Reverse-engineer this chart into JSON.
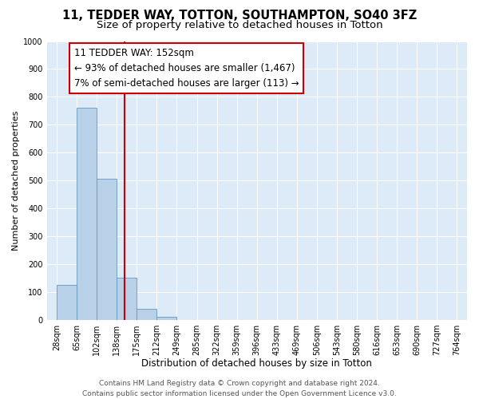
{
  "title": "11, TEDDER WAY, TOTTON, SOUTHAMPTON, SO40 3FZ",
  "subtitle": "Size of property relative to detached houses in Totton",
  "xlabel": "Distribution of detached houses by size in Totton",
  "ylabel": "Number of detached properties",
  "bin_labels": [
    "28sqm",
    "65sqm",
    "102sqm",
    "138sqm",
    "175sqm",
    "212sqm",
    "249sqm",
    "285sqm",
    "322sqm",
    "359sqm",
    "396sqm",
    "433sqm",
    "469sqm",
    "506sqm",
    "543sqm",
    "580sqm",
    "616sqm",
    "653sqm",
    "690sqm",
    "727sqm",
    "764sqm"
  ],
  "bar_values": [
    127,
    760,
    505,
    152,
    40,
    10,
    0,
    0,
    0,
    0,
    0,
    0,
    0,
    0,
    0,
    0,
    0,
    0,
    0,
    0
  ],
  "bar_color": "#b8d0e8",
  "bar_edge_color": "#6699bb",
  "background_color": "#ddeaf7",
  "grid_color": "#ffffff",
  "vline_color": "#cc0000",
  "vline_bin_index": 3.38,
  "annotation_title": "11 TEDDER WAY: 152sqm",
  "annotation_line1": "← 93% of detached houses are smaller (1,467)",
  "annotation_line2": "7% of semi-detached houses are larger (113) →",
  "annotation_box_edge_color": "#cc0000",
  "ylim": [
    0,
    1000
  ],
  "yticks": [
    0,
    100,
    200,
    300,
    400,
    500,
    600,
    700,
    800,
    900,
    1000
  ],
  "footer_line1": "Contains HM Land Registry data © Crown copyright and database right 2024.",
  "footer_line2": "Contains public sector information licensed under the Open Government Licence v3.0.",
  "title_fontsize": 10.5,
  "subtitle_fontsize": 9.5,
  "xlabel_fontsize": 8.5,
  "ylabel_fontsize": 8,
  "tick_fontsize": 7,
  "annotation_title_fontsize": 8.5,
  "annotation_body_fontsize": 8.5,
  "footer_fontsize": 6.5
}
